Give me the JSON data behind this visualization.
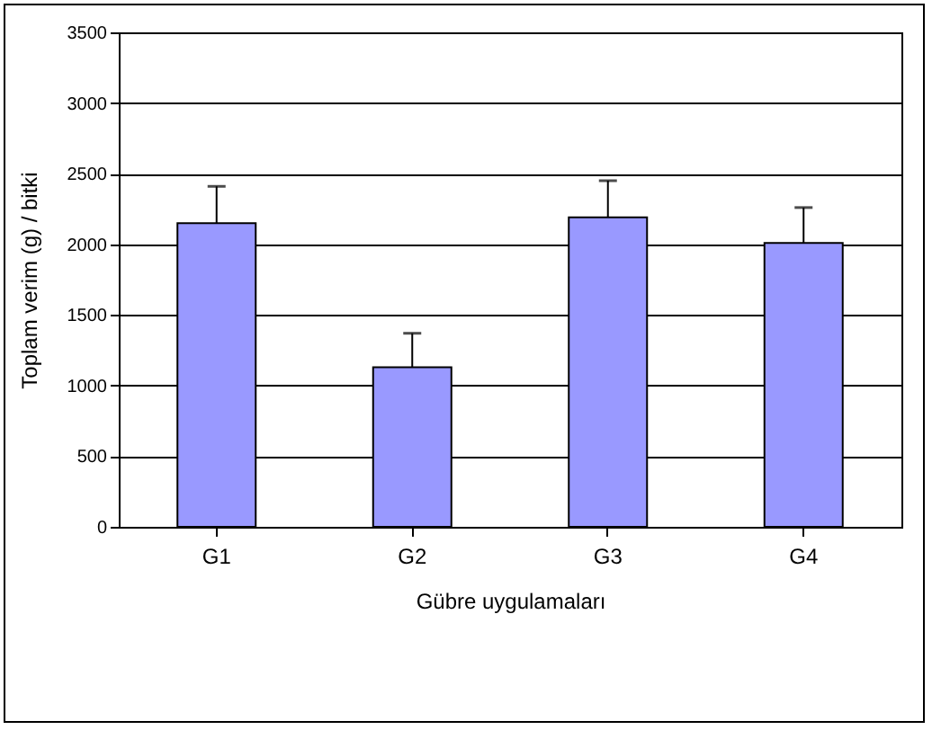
{
  "chart_data": {
    "type": "bar",
    "xlabel": "Gübre uygulamaları",
    "ylabel": "Toplam verim (g) / bitki",
    "categories": [
      "G1",
      "G2",
      "G3",
      "G4"
    ],
    "values": [
      2150,
      1130,
      2190,
      2010
    ],
    "errors": [
      [
        2150,
        2410
      ],
      [
        1130,
        1370
      ],
      [
        2190,
        2450
      ],
      [
        2010,
        2260
      ]
    ],
    "color": "#9999ff",
    "ylim": [
      0,
      3500
    ],
    "yticks": [
      0,
      500,
      1000,
      1500,
      2000,
      2500,
      3000,
      3500
    ],
    "grid": "y"
  }
}
